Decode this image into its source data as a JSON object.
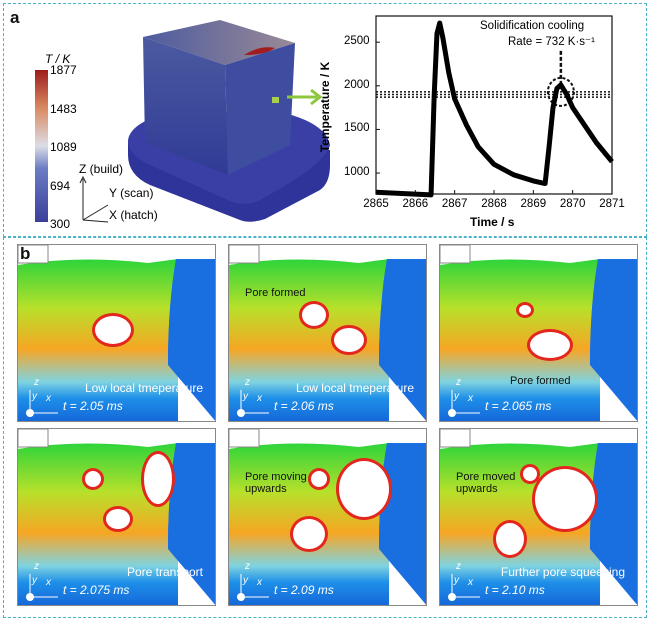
{
  "panel_a": {
    "label": "a",
    "colorbar": {
      "title": "T / K",
      "ticks": [
        "1877",
        "1483",
        "1089",
        "694",
        "300"
      ],
      "colors": [
        "#3b3f9a",
        "#6a7cc4",
        "#dcdde6",
        "#d98a62",
        "#9c1c1c"
      ]
    },
    "axes": {
      "z": "Z (build)",
      "y": "Y (scan)",
      "x": "X (hatch)"
    },
    "arrow_color": "#8cc63f"
  },
  "chart_data": {
    "type": "line",
    "xlabel": "Time / s",
    "ylabel": "Temperature / K",
    "xlim": [
      2865,
      2871
    ],
    "ylim": [
      760,
      2800
    ],
    "xticks": [
      "2865",
      "2866",
      "2867",
      "2868",
      "2869",
      "2870",
      "2871"
    ],
    "yticks": [
      "1000",
      "1500",
      "2000",
      "2500"
    ],
    "annotation": {
      "line1": "Solidification cooling",
      "line2": "Rate = 732 K·s⁻¹"
    },
    "reference_lines": [
      1930,
      1900,
      1870
    ],
    "series": [
      {
        "x": [
          2865,
          2866.4,
          2866.48,
          2866.55,
          2866.62,
          2866.7,
          2866.85,
          2867,
          2867.3,
          2867.6,
          2868,
          2868.5,
          2869,
          2869.3,
          2869.4,
          2869.5,
          2869.6,
          2869.7,
          2869.85,
          2870,
          2870.3,
          2870.6,
          2871
        ],
        "y": [
          780,
          750,
          1900,
          2600,
          2720,
          2550,
          2150,
          1850,
          1550,
          1300,
          1100,
          980,
          910,
          880,
          1300,
          1750,
          1970,
          2010,
          1900,
          1750,
          1550,
          1350,
          1130
        ]
      }
    ]
  },
  "panel_b": {
    "label": "b",
    "frames": [
      {
        "time": "t = 2.05 ms",
        "caption": "Low local tmeperature",
        "note": ""
      },
      {
        "time": "t = 2.06 ms",
        "caption": "Low local tmeperature",
        "note": "Pore formed"
      },
      {
        "time": "t = 2.065 ms",
        "caption": "",
        "note": "Pore formed"
      },
      {
        "time": "t = 2.075 ms",
        "caption": "Pore transport",
        "note": ""
      },
      {
        "time": "t = 2.09 ms",
        "caption": "",
        "note": "Pore moving upwards"
      },
      {
        "time": "t = 2.10 ms",
        "caption": "Further pore squeezing",
        "note": "Pore moved upwards"
      }
    ],
    "axes": {
      "z": "z",
      "y": "y",
      "x": "x"
    }
  }
}
